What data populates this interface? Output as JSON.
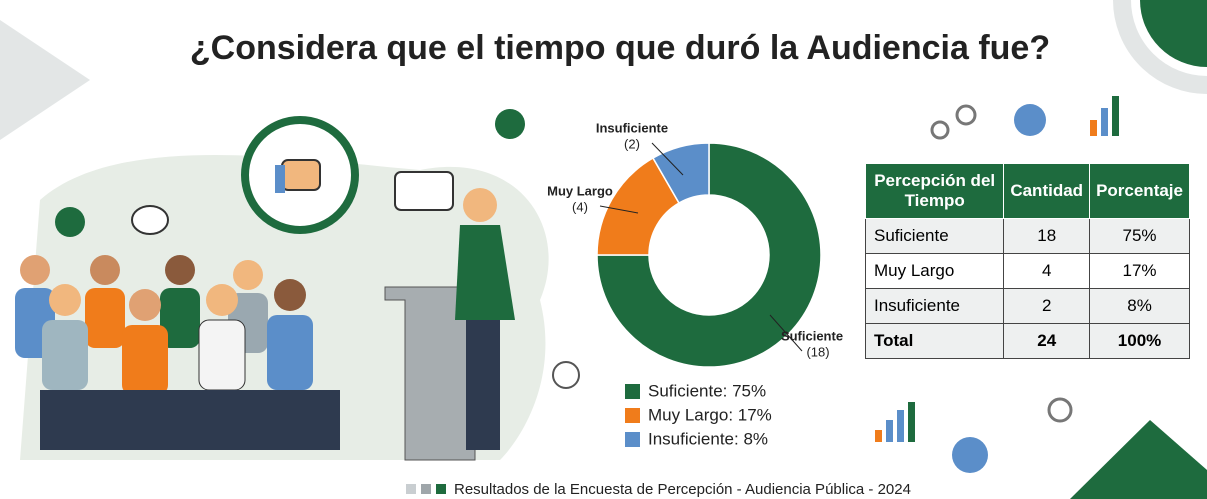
{
  "title": "¿Considera que el tiempo que duró la Audiencia fue?",
  "chart_data": {
    "type": "donut",
    "categories": [
      "Suficiente",
      "Muy Largo",
      "Insuficiente"
    ],
    "values": [
      18,
      4,
      2
    ],
    "value_labels": [
      "(18)",
      "(4)",
      "(2)"
    ],
    "colors": [
      "#1e6b3e",
      "#f07c1b",
      "#5b8ec9"
    ],
    "legend": [
      "Suficiente: 75%",
      "Muy Largo: 17%",
      "Insuficiente: 8%"
    ]
  },
  "table": {
    "headers": [
      "Percepción del Tiempo",
      "Cantidad",
      "Porcentaje"
    ],
    "rows": [
      [
        "Suficiente",
        "18",
        "75%"
      ],
      [
        "Muy Largo",
        "4",
        "17%"
      ],
      [
        "Insuficiente",
        "2",
        "8%"
      ],
      [
        "Total",
        "24",
        "100%"
      ]
    ]
  },
  "footer": "Resultados de la Encuesta de Percepción - Audiencia Pública - 2024"
}
